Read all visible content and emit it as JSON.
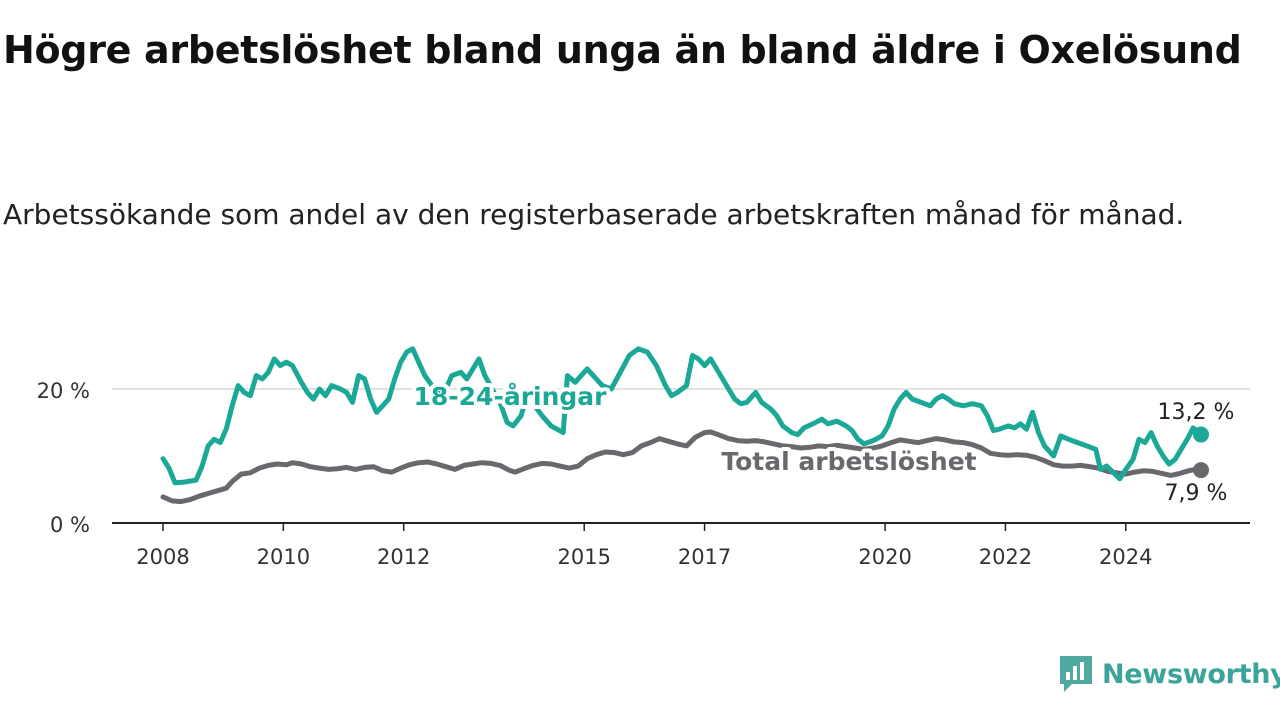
{
  "title": "Högre arbetslöshet bland unga än bland äldre i Oxelösund",
  "subtitle": "Arbetssökande som andel av den registerbaserade arbetskraften månad för månad.",
  "brand": {
    "name": "Newsworthy",
    "icon": "newsworthy-logo-icon",
    "color": "#4fa9a0"
  },
  "chart_data": {
    "type": "line",
    "ylim": [
      0,
      30
    ],
    "y_ticks": [
      {
        "value": 0,
        "label": "0 %"
      },
      {
        "value": 20,
        "label": "20 %"
      }
    ],
    "x_ticks": [
      {
        "value": 2008,
        "label": "2008"
      },
      {
        "value": 2010,
        "label": "2010"
      },
      {
        "value": 2012,
        "label": "2012"
      },
      {
        "value": 2015,
        "label": "2015"
      },
      {
        "value": 2017,
        "label": "2017"
      },
      {
        "value": 2020,
        "label": "2020"
      },
      {
        "value": 2022,
        "label": "2022"
      },
      {
        "value": 2024,
        "label": "2024"
      }
    ],
    "grid": "horizontal",
    "series": [
      {
        "name": "18-24-åringar",
        "color": "#1ba896",
        "end_label": "13,2 %",
        "points": [
          [
            2008.0,
            9.6
          ],
          [
            2008.1,
            8.2
          ],
          [
            2008.2,
            6.0
          ],
          [
            2008.35,
            6.1
          ],
          [
            2008.55,
            6.4
          ],
          [
            2008.65,
            8.5
          ],
          [
            2008.75,
            11.5
          ],
          [
            2008.85,
            12.5
          ],
          [
            2008.95,
            12.0
          ],
          [
            2009.05,
            14.0
          ],
          [
            2009.15,
            17.5
          ],
          [
            2009.25,
            20.5
          ],
          [
            2009.35,
            19.5
          ],
          [
            2009.45,
            19.0
          ],
          [
            2009.55,
            22.0
          ],
          [
            2009.65,
            21.5
          ],
          [
            2009.75,
            22.5
          ],
          [
            2009.85,
            24.5
          ],
          [
            2009.95,
            23.5
          ],
          [
            2010.05,
            24.0
          ],
          [
            2010.15,
            23.5
          ],
          [
            2010.3,
            21.0
          ],
          [
            2010.4,
            19.5
          ],
          [
            2010.5,
            18.5
          ],
          [
            2010.6,
            20.0
          ],
          [
            2010.7,
            19.0
          ],
          [
            2010.8,
            20.5
          ],
          [
            2010.95,
            20.0
          ],
          [
            2011.05,
            19.5
          ],
          [
            2011.15,
            18.0
          ],
          [
            2011.25,
            22.0
          ],
          [
            2011.35,
            21.5
          ],
          [
            2011.45,
            18.5
          ],
          [
            2011.55,
            16.5
          ],
          [
            2011.65,
            17.5
          ],
          [
            2011.75,
            18.5
          ],
          [
            2011.85,
            21.5
          ],
          [
            2011.95,
            24.0
          ],
          [
            2012.05,
            25.5
          ],
          [
            2012.15,
            26.0
          ],
          [
            2012.25,
            24.0
          ],
          [
            2012.35,
            22.0
          ],
          [
            2012.55,
            19.5
          ],
          [
            2012.65,
            19.0
          ],
          [
            2012.8,
            22.0
          ],
          [
            2012.95,
            22.5
          ],
          [
            2013.05,
            21.5
          ],
          [
            2013.15,
            23.0
          ],
          [
            2013.25,
            24.5
          ],
          [
            2013.35,
            22.0
          ],
          [
            2013.5,
            19.5
          ],
          [
            2013.6,
            18.0
          ],
          [
            2013.72,
            15.0
          ],
          [
            2013.82,
            14.5
          ],
          [
            2013.95,
            16.0
          ],
          [
            2014.05,
            19.0
          ],
          [
            2014.3,
            16.0
          ],
          [
            2014.45,
            14.5
          ],
          [
            2014.65,
            13.5
          ],
          [
            2014.72,
            22.0
          ],
          [
            2014.85,
            21.0
          ],
          [
            2014.95,
            22.0
          ],
          [
            2015.05,
            23.0
          ],
          [
            2015.15,
            22.0
          ],
          [
            2015.3,
            20.5
          ],
          [
            2015.45,
            20.0
          ],
          [
            2015.6,
            22.5
          ],
          [
            2015.75,
            25.0
          ],
          [
            2015.9,
            26.0
          ],
          [
            2016.05,
            25.5
          ],
          [
            2016.2,
            23.5
          ],
          [
            2016.35,
            20.5
          ],
          [
            2016.45,
            19.0
          ],
          [
            2016.55,
            19.5
          ],
          [
            2016.7,
            20.5
          ],
          [
            2016.8,
            25.0
          ],
          [
            2016.9,
            24.5
          ],
          [
            2017.0,
            23.5
          ],
          [
            2017.1,
            24.5
          ],
          [
            2017.2,
            23.0
          ],
          [
            2017.3,
            21.5
          ],
          [
            2017.4,
            20.0
          ],
          [
            2017.5,
            18.5
          ],
          [
            2017.6,
            17.8
          ],
          [
            2017.7,
            18.0
          ],
          [
            2017.85,
            19.5
          ],
          [
            2017.95,
            18.0
          ],
          [
            2018.1,
            17.0
          ],
          [
            2018.2,
            16.0
          ],
          [
            2018.3,
            14.5
          ],
          [
            2018.45,
            13.5
          ],
          [
            2018.55,
            13.2
          ],
          [
            2018.65,
            14.2
          ],
          [
            2018.8,
            14.8
          ],
          [
            2018.95,
            15.5
          ],
          [
            2019.05,
            14.8
          ],
          [
            2019.2,
            15.2
          ],
          [
            2019.35,
            14.5
          ],
          [
            2019.45,
            13.8
          ],
          [
            2019.55,
            12.5
          ],
          [
            2019.65,
            11.8
          ],
          [
            2019.8,
            12.3
          ],
          [
            2019.95,
            13.0
          ],
          [
            2020.05,
            14.5
          ],
          [
            2020.15,
            17.0
          ],
          [
            2020.25,
            18.5
          ],
          [
            2020.35,
            19.5
          ],
          [
            2020.45,
            18.5
          ],
          [
            2020.6,
            18.0
          ],
          [
            2020.75,
            17.5
          ],
          [
            2020.85,
            18.5
          ],
          [
            2020.95,
            19.0
          ],
          [
            2021.05,
            18.5
          ],
          [
            2021.15,
            17.8
          ],
          [
            2021.3,
            17.5
          ],
          [
            2021.45,
            17.8
          ],
          [
            2021.6,
            17.5
          ],
          [
            2021.7,
            16.0
          ],
          [
            2021.8,
            13.8
          ],
          [
            2021.9,
            14.0
          ],
          [
            2022.05,
            14.5
          ],
          [
            2022.15,
            14.2
          ],
          [
            2022.25,
            14.8
          ],
          [
            2022.35,
            14.0
          ],
          [
            2022.45,
            16.5
          ],
          [
            2022.55,
            13.5
          ],
          [
            2022.65,
            11.5
          ],
          [
            2022.8,
            10.0
          ],
          [
            2022.92,
            13.0
          ],
          [
            2023.05,
            12.5
          ],
          [
            2023.2,
            12.0
          ],
          [
            2023.35,
            11.5
          ],
          [
            2023.5,
            11.0
          ],
          [
            2023.58,
            8.0
          ],
          [
            2023.68,
            8.5
          ],
          [
            2023.8,
            7.5
          ],
          [
            2023.9,
            6.6
          ],
          [
            2024.0,
            8.0
          ],
          [
            2024.12,
            9.5
          ],
          [
            2024.22,
            12.5
          ],
          [
            2024.32,
            12.0
          ],
          [
            2024.42,
            13.5
          ],
          [
            2024.52,
            11.5
          ],
          [
            2024.62,
            10.0
          ],
          [
            2024.72,
            8.8
          ],
          [
            2024.82,
            9.5
          ],
          [
            2024.92,
            11.0
          ],
          [
            2025.02,
            12.5
          ],
          [
            2025.12,
            14.2
          ],
          [
            2025.25,
            13.2
          ]
        ]
      },
      {
        "name": "Total arbetslöshet",
        "color": "#6b686d",
        "end_label": "7,9 %",
        "points": [
          [
            2008.0,
            3.9
          ],
          [
            2008.15,
            3.3
          ],
          [
            2008.3,
            3.2
          ],
          [
            2008.45,
            3.5
          ],
          [
            2008.6,
            4.0
          ],
          [
            2008.75,
            4.4
          ],
          [
            2008.9,
            4.8
          ],
          [
            2009.05,
            5.2
          ],
          [
            2009.15,
            6.2
          ],
          [
            2009.3,
            7.3
          ],
          [
            2009.45,
            7.5
          ],
          [
            2009.6,
            8.2
          ],
          [
            2009.75,
            8.6
          ],
          [
            2009.9,
            8.8
          ],
          [
            2010.05,
            8.7
          ],
          [
            2010.15,
            9.0
          ],
          [
            2010.3,
            8.8
          ],
          [
            2010.45,
            8.4
          ],
          [
            2010.6,
            8.2
          ],
          [
            2010.75,
            8.0
          ],
          [
            2010.9,
            8.1
          ],
          [
            2011.05,
            8.3
          ],
          [
            2011.2,
            8.0
          ],
          [
            2011.35,
            8.3
          ],
          [
            2011.5,
            8.4
          ],
          [
            2011.65,
            7.8
          ],
          [
            2011.8,
            7.6
          ],
          [
            2011.95,
            8.2
          ],
          [
            2012.1,
            8.7
          ],
          [
            2012.25,
            9.0
          ],
          [
            2012.4,
            9.1
          ],
          [
            2012.55,
            8.8
          ],
          [
            2012.7,
            8.4
          ],
          [
            2012.85,
            8.0
          ],
          [
            2013.0,
            8.6
          ],
          [
            2013.15,
            8.8
          ],
          [
            2013.3,
            9.0
          ],
          [
            2013.45,
            8.9
          ],
          [
            2013.6,
            8.6
          ],
          [
            2013.75,
            7.9
          ],
          [
            2013.85,
            7.6
          ],
          [
            2014.0,
            8.1
          ],
          [
            2014.15,
            8.6
          ],
          [
            2014.3,
            8.9
          ],
          [
            2014.45,
            8.8
          ],
          [
            2014.6,
            8.5
          ],
          [
            2014.75,
            8.2
          ],
          [
            2014.9,
            8.5
          ],
          [
            2015.05,
            9.6
          ],
          [
            2015.2,
            10.2
          ],
          [
            2015.35,
            10.6
          ],
          [
            2015.5,
            10.5
          ],
          [
            2015.65,
            10.2
          ],
          [
            2015.8,
            10.5
          ],
          [
            2015.95,
            11.5
          ],
          [
            2016.1,
            12.0
          ],
          [
            2016.25,
            12.6
          ],
          [
            2016.4,
            12.2
          ],
          [
            2016.55,
            11.8
          ],
          [
            2016.7,
            11.5
          ],
          [
            2016.85,
            12.8
          ],
          [
            2017.0,
            13.5
          ],
          [
            2017.1,
            13.6
          ],
          [
            2017.25,
            13.1
          ],
          [
            2017.4,
            12.6
          ],
          [
            2017.55,
            12.3
          ],
          [
            2017.7,
            12.2
          ],
          [
            2017.85,
            12.3
          ],
          [
            2018.0,
            12.1
          ],
          [
            2018.15,
            11.8
          ],
          [
            2018.3,
            11.5
          ],
          [
            2018.45,
            11.4
          ],
          [
            2018.6,
            11.2
          ],
          [
            2018.75,
            11.3
          ],
          [
            2018.9,
            11.5
          ],
          [
            2019.05,
            11.4
          ],
          [
            2019.2,
            11.6
          ],
          [
            2019.35,
            11.4
          ],
          [
            2019.5,
            11.2
          ],
          [
            2019.65,
            11.0
          ],
          [
            2019.8,
            11.2
          ],
          [
            2019.95,
            11.5
          ],
          [
            2020.1,
            12.0
          ],
          [
            2020.25,
            12.4
          ],
          [
            2020.4,
            12.2
          ],
          [
            2020.55,
            12.0
          ],
          [
            2020.7,
            12.3
          ],
          [
            2020.85,
            12.6
          ],
          [
            2021.0,
            12.4
          ],
          [
            2021.15,
            12.1
          ],
          [
            2021.3,
            12.0
          ],
          [
            2021.45,
            11.7
          ],
          [
            2021.6,
            11.2
          ],
          [
            2021.75,
            10.4
          ],
          [
            2021.9,
            10.2
          ],
          [
            2022.05,
            10.1
          ],
          [
            2022.2,
            10.2
          ],
          [
            2022.35,
            10.1
          ],
          [
            2022.5,
            9.8
          ],
          [
            2022.65,
            9.3
          ],
          [
            2022.8,
            8.7
          ],
          [
            2022.95,
            8.5
          ],
          [
            2023.1,
            8.5
          ],
          [
            2023.25,
            8.6
          ],
          [
            2023.4,
            8.4
          ],
          [
            2023.55,
            8.2
          ],
          [
            2023.7,
            7.7
          ],
          [
            2023.85,
            7.5
          ],
          [
            2024.0,
            7.3
          ],
          [
            2024.15,
            7.6
          ],
          [
            2024.3,
            7.8
          ],
          [
            2024.45,
            7.7
          ],
          [
            2024.6,
            7.4
          ],
          [
            2024.75,
            7.1
          ],
          [
            2024.9,
            7.4
          ],
          [
            2025.05,
            7.8
          ],
          [
            2025.15,
            8.0
          ],
          [
            2025.25,
            7.9
          ]
        ]
      }
    ]
  }
}
